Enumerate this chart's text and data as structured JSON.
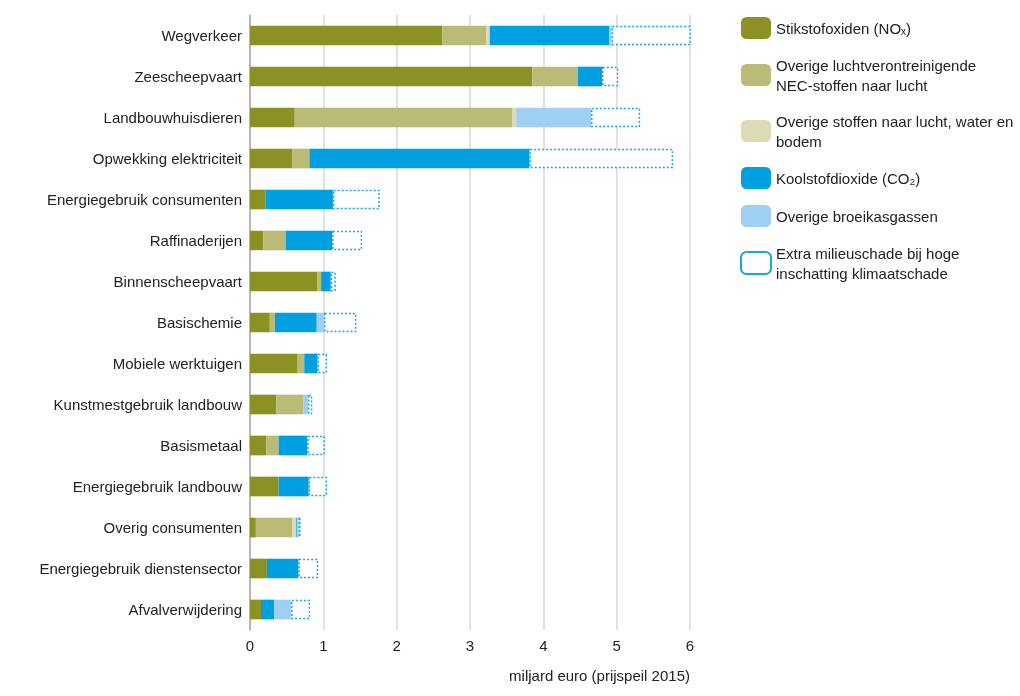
{
  "chart_data": {
    "type": "bar",
    "orientation": "horizontal",
    "stacked": true,
    "categories": [
      "Wegverkeer",
      "Zeescheepvaart",
      "Landbouwhuisdieren",
      "Opwekking elektriciteit",
      "Energiegebruik consumenten",
      "Raffinaderijen",
      "Binnenscheepvaart",
      "Basischemie",
      "Mobiele werktuigen",
      "Kunstmestgebruik landbouw",
      "Basismetaal",
      "Energiegebruik landbouw",
      "Overig consumenten",
      "Energiegebruik dienstensector",
      "Afvalverwijdering"
    ],
    "series": [
      {
        "name": "Stikstofoxiden (NOₓ)",
        "color": "#8c9124",
        "values": [
          2.62,
          3.85,
          0.61,
          0.58,
          0.21,
          0.18,
          0.92,
          0.27,
          0.65,
          0.36,
          0.22,
          0.39,
          0.08,
          0.23,
          0.15
        ]
      },
      {
        "name": "Overige luchtverontreinigende NEC-stoffen naar lucht",
        "color": "#bbbb78",
        "values": [
          0.6,
          0.62,
          2.97,
          0.23,
          0,
          0.31,
          0.05,
          0.07,
          0.09,
          0.37,
          0.17,
          0,
          0.5,
          0,
          0
        ]
      },
      {
        "name": "Overige stoffen naar lucht, water en bodem",
        "color": "#dcdcb4",
        "values": [
          0.05,
          0,
          0.05,
          null,
          0,
          0,
          0,
          0,
          0,
          null,
          null,
          0,
          0.05,
          0,
          null
        ]
      },
      {
        "name": "Koolstofdioxide (CO₂)",
        "color": "#009fe0",
        "values": [
          1.63,
          0.33,
          0,
          3.0,
          0.92,
          0.63,
          0.13,
          0.57,
          0.18,
          0,
          0.39,
          0.41,
          0.01,
          0.43,
          0.18
        ]
      },
      {
        "name": "Overige broeikasgassen",
        "color": "#9fcff2",
        "values": [
          0.03,
          0,
          1.02,
          0,
          0,
          0,
          0,
          0.1,
          0,
          0.06,
          0,
          0,
          0.02,
          0,
          0.23
        ]
      },
      {
        "name": "Extra milieuschade bij hoge inschatting klimaatschade",
        "color": "#1aa3e0",
        "line_style": "dotted",
        "values": [
          1.09,
          0.22,
          0.67,
          1.96,
          0.64,
          0.41,
          0.07,
          0.44,
          0.13,
          0.06,
          0.24,
          0.25,
          0.03,
          0.27,
          0.26
        ]
      }
    ],
    "xlim": [
      0,
      6
    ],
    "xticks": [
      0,
      1,
      2,
      3,
      4,
      5,
      6
    ],
    "xlabel": "miljard euro (prijspeil 2015)",
    "grid": "x",
    "legend": "right"
  }
}
